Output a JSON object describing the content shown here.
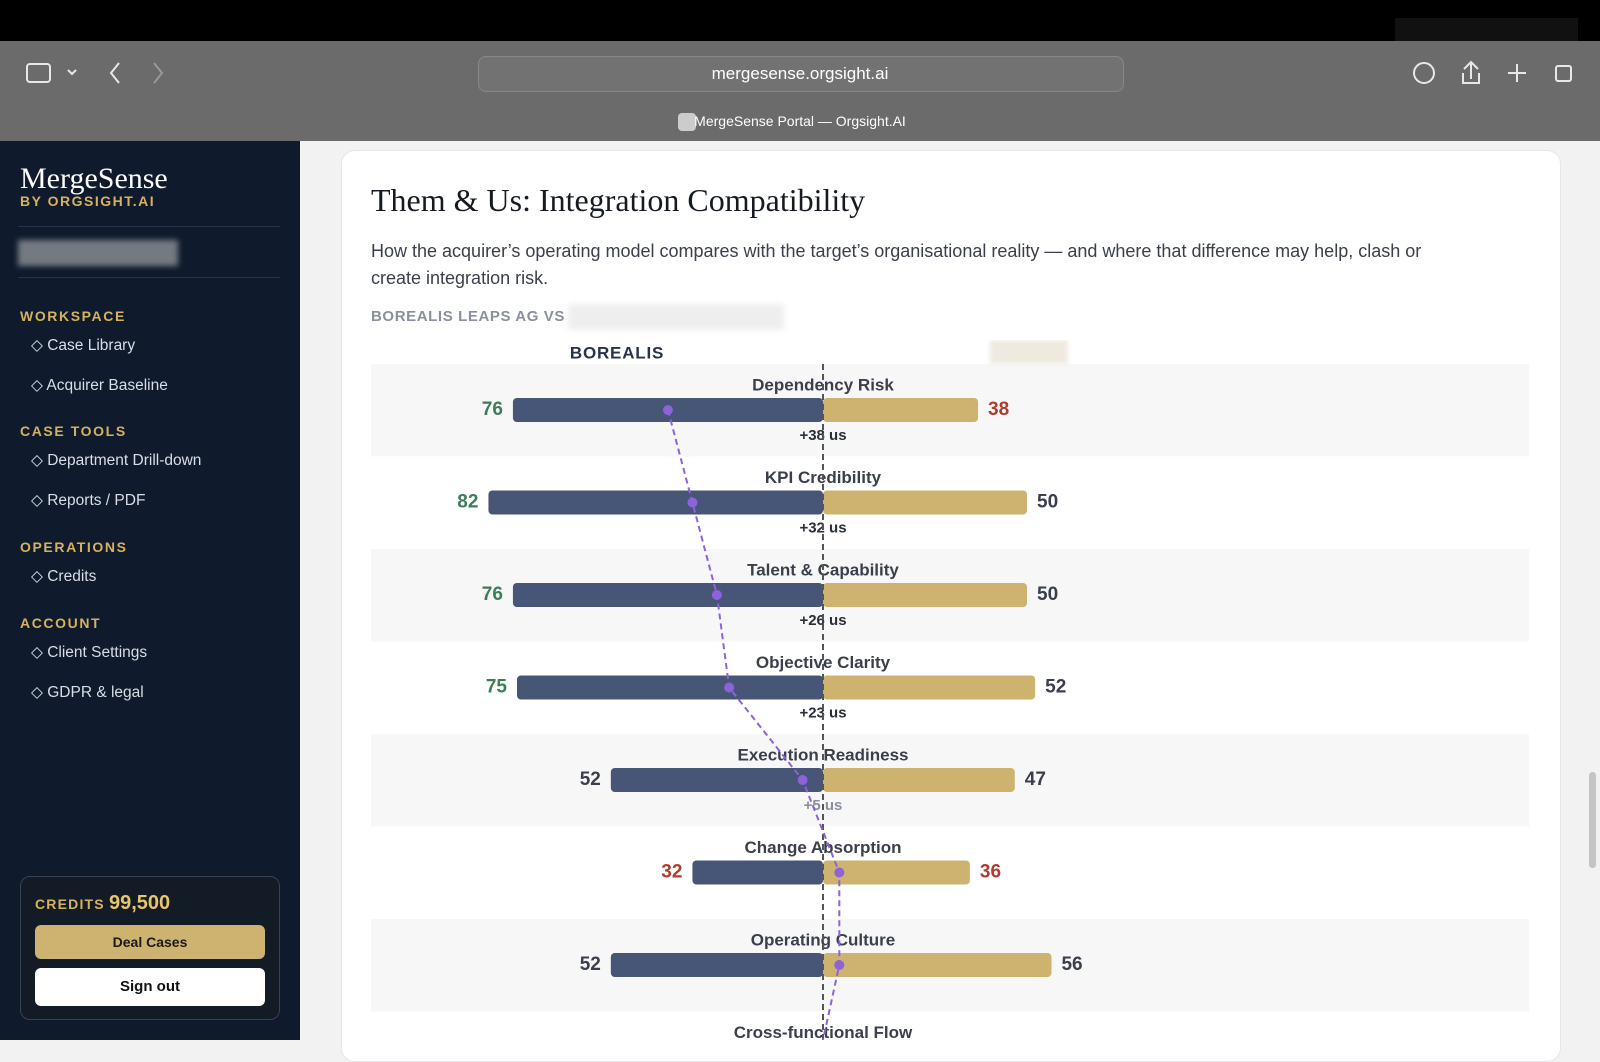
{
  "browser": {
    "url": "mergesense.orgsight.ai",
    "tab_title": "MergeSense Portal — Orgsight.AI"
  },
  "sidebar": {
    "brand": "MergeSense",
    "brand_sub": "BY ORGSIGHT.AI",
    "sections": [
      {
        "title": "WORKSPACE",
        "items": [
          "◇ Case Library",
          "◇ Acquirer Baseline"
        ]
      },
      {
        "title": "CASE TOOLS",
        "items": [
          "◇ Department Drill-down",
          "◇ Reports / PDF"
        ]
      },
      {
        "title": "OPERATIONS",
        "items": [
          "◇ Credits"
        ]
      },
      {
        "title": "ACCOUNT",
        "items": [
          "◇ Client Settings",
          "◇ GDPR & legal"
        ]
      }
    ],
    "credits_label": "CREDITS",
    "credits_amount": "99,500",
    "buttons": [
      "Deal Cases",
      "Sign out"
    ]
  },
  "card": {
    "title": "Them & Us: Integration Compatibility",
    "description": "How the acquirer’s operating model compares with the target’s organisational reality — and where that difference may help, clash or create integration risk.",
    "comparison_label": "BOREALIS LEAPS AG VS"
  },
  "chart_data": {
    "type": "diverging_bar",
    "categories": [
      "Dependency Risk",
      "KPI Credibility",
      "Talent & Capability",
      "Objective Clarity",
      "Execution Readiness",
      "Change Absorption",
      "Operating Culture",
      "Cross-functional Flow"
    ],
    "series": [
      {
        "name": "BOREALIS",
        "color": "#475576",
        "values": [
          76,
          82,
          76,
          75,
          52,
          32,
          52,
          null
        ],
        "label_colors": [
          "#3d7d57",
          "#3d7d57",
          "#3d7d57",
          "#3d7d57",
          "#3a3f4b",
          "#b23a2f",
          "#3a3f4b",
          null
        ]
      },
      {
        "color": "#cdb36f",
        "values": [
          38,
          50,
          50,
          52,
          47,
          36,
          56,
          null
        ],
        "label_colors": [
          "#b23a2f",
          "#3a3f4b",
          "#3a3f4b",
          "#3a3f4b",
          "#3a3f4b",
          "#b23a2f",
          "#3a3f4b",
          null
        ]
      }
    ],
    "difference_labels": [
      "+38 us",
      "+32 us",
      "+26 us",
      "+23 us",
      "+5 us",
      null,
      null,
      null
    ],
    "difference_color": "#8e62d9"
  }
}
